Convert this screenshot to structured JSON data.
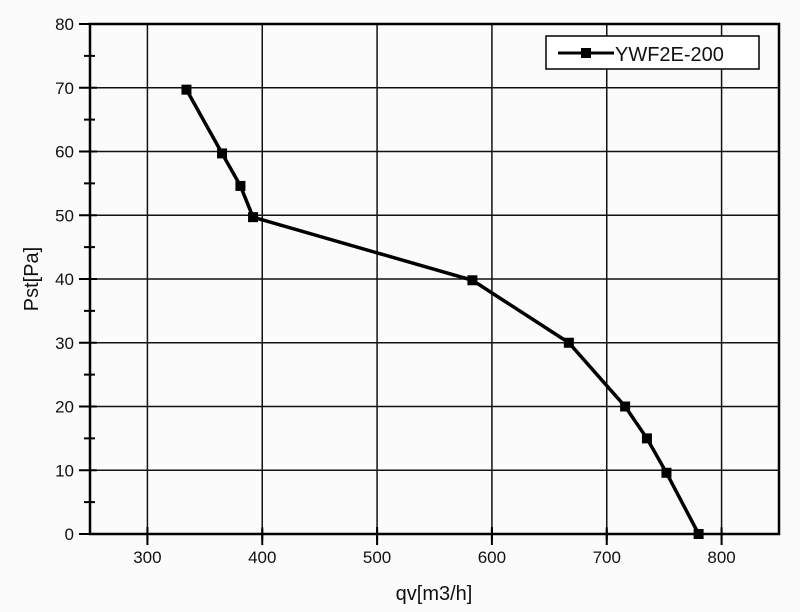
{
  "chart_data": {
    "type": "line",
    "title": "",
    "xlabel": "qv[m3/h]",
    "ylabel": "Pst[Pa]",
    "xlim": [
      250,
      850
    ],
    "ylim": [
      0,
      80
    ],
    "xticks": [
      300,
      400,
      500,
      600,
      700,
      800
    ],
    "yticks": [
      0,
      10,
      20,
      30,
      40,
      50,
      60,
      70,
      80
    ],
    "grid": true,
    "legend_position": "top-right",
    "series": [
      {
        "name": "YWF2E-200",
        "color": "#000000",
        "marker": "square",
        "x": [
          334,
          365,
          381,
          392,
          583,
          667,
          716,
          735,
          752,
          780
        ],
        "y": [
          69.7,
          59.7,
          54.6,
          49.7,
          39.8,
          30,
          20,
          15,
          9.6,
          0
        ]
      }
    ]
  }
}
